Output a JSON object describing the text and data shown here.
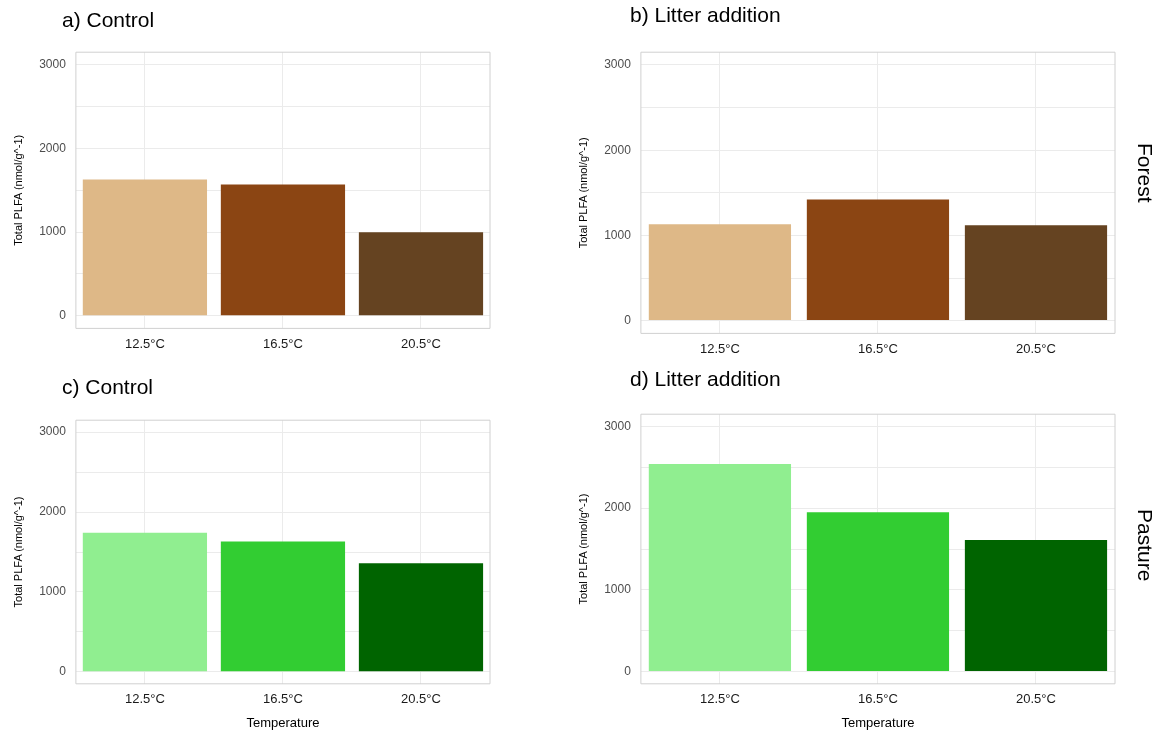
{
  "chart_data": [
    {
      "type": "bar",
      "title": "a) Control",
      "ylabel": "Total PLFA (nmol/g^-1)",
      "categories": [
        "12.5°C",
        "16.5°C",
        "20.5°C"
      ],
      "values": [
        1630,
        1570,
        1000
      ],
      "colors": [
        "#deb887",
        "#8b4513",
        "#654321"
      ],
      "ylim": [
        -150,
        3150
      ],
      "yticks": [
        0,
        {
          "value": 500,
          "label": null
        },
        1000,
        {
          "value": 1500,
          "label": null
        },
        2000,
        {
          "value": 2500,
          "label": null
        },
        3000
      ],
      "grid": true
    },
    {
      "type": "bar",
      "title": "b) Litter addition",
      "ylabel": "Total PLFA (nmol/g^-1)",
      "categories": [
        "12.5°C",
        "16.5°C",
        "20.5°C"
      ],
      "values": [
        1130,
        1420,
        1120
      ],
      "colors": [
        "#deb887",
        "#8b4513",
        "#654321"
      ],
      "ylim": [
        -150,
        3150
      ],
      "yticks": [
        0,
        {
          "value": 500,
          "label": null
        },
        1000,
        {
          "value": 1500,
          "label": null
        },
        2000,
        {
          "value": 2500,
          "label": null
        },
        3000
      ],
      "grid": true,
      "annotations": [
        "Forest"
      ]
    },
    {
      "type": "bar",
      "title": "c) Control",
      "ylabel": "Total PLFA (nmol/g^-1)",
      "xlabel": "Temperature",
      "categories": [
        "12.5°C",
        "16.5°C",
        "20.5°C"
      ],
      "values": [
        1740,
        1630,
        1360
      ],
      "colors": [
        "#90ee90",
        "#32cd32",
        "#006400"
      ],
      "ylim": [
        -150,
        3150
      ],
      "yticks": [
        0,
        {
          "value": 500,
          "label": null
        },
        1000,
        {
          "value": 1500,
          "label": null
        },
        2000,
        {
          "value": 2500,
          "label": null
        },
        3000
      ],
      "grid": true
    },
    {
      "type": "bar",
      "title": "d) Litter addition",
      "ylabel": "Total PLFA (nmol/g^-1)",
      "xlabel": "Temperature",
      "categories": [
        "12.5°C",
        "16.5°C",
        "20.5°C"
      ],
      "values": [
        2540,
        1950,
        1610
      ],
      "colors": [
        "#90ee90",
        "#32cd32",
        "#006400"
      ],
      "ylim": [
        -150,
        3150
      ],
      "yticks": [
        0,
        {
          "value": 500,
          "label": null
        },
        1000,
        {
          "value": 1500,
          "label": null
        },
        2000,
        {
          "value": 2500,
          "label": null
        },
        3000
      ],
      "grid": true,
      "annotations": [
        "Pasture"
      ]
    }
  ]
}
